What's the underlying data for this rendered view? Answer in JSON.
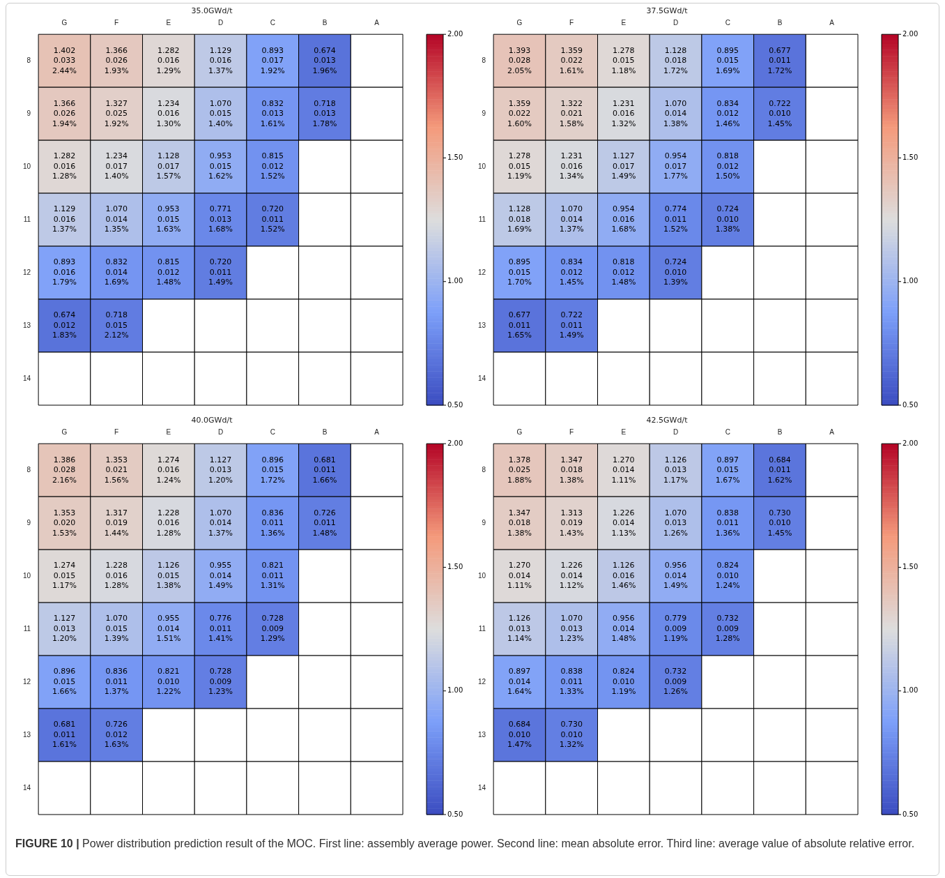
{
  "chart_data": [
    {
      "type": "heatmap",
      "title": "35.0GWd/t",
      "categories": [
        "G",
        "F",
        "E",
        "D",
        "C",
        "B",
        "A"
      ],
      "y_categories": [
        "8",
        "9",
        "10",
        "11",
        "12",
        "13",
        "14"
      ],
      "cells": [
        [
          1.402,
          1.366,
          1.282,
          1.129,
          0.893,
          0.674,
          null
        ],
        [
          1.366,
          1.327,
          1.234,
          1.07,
          0.832,
          0.718,
          null
        ],
        [
          1.282,
          1.234,
          1.128,
          0.953,
          0.815,
          null,
          null
        ],
        [
          1.129,
          1.07,
          0.953,
          0.771,
          0.72,
          null,
          null
        ],
        [
          0.893,
          0.832,
          0.815,
          0.72,
          null,
          null,
          null
        ],
        [
          0.674,
          0.718,
          null,
          null,
          null,
          null,
          null
        ],
        [
          null,
          null,
          null,
          null,
          null,
          null,
          null
        ]
      ],
      "cell_labels": [
        [
          "1.402\n0.033\n2.44%",
          "1.366\n0.026\n1.93%",
          "1.282\n0.016\n1.29%",
          "1.129\n0.016\n1.37%",
          "0.893\n0.017\n1.92%",
          "0.674\n0.013\n1.96%",
          null
        ],
        [
          "1.366\n0.026\n1.94%",
          "1.327\n0.025\n1.92%",
          "1.234\n0.016\n1.30%",
          "1.070\n0.015\n1.40%",
          "0.832\n0.013\n1.61%",
          "0.718\n0.013\n1.78%",
          null
        ],
        [
          "1.282\n0.016\n1.28%",
          "1.234\n0.017\n1.40%",
          "1.128\n0.017\n1.57%",
          "0.953\n0.015\n1.62%",
          "0.815\n0.012\n1.52%",
          null,
          null
        ],
        [
          "1.129\n0.016\n1.37%",
          "1.070\n0.014\n1.35%",
          "0.953\n0.015\n1.63%",
          "0.771\n0.013\n1.68%",
          "0.720\n0.011\n1.52%",
          null,
          null
        ],
        [
          "0.893\n0.016\n1.79%",
          "0.832\n0.014\n1.69%",
          "0.815\n0.012\n1.48%",
          "0.720\n0.011\n1.49%",
          null,
          null,
          null
        ],
        [
          "0.674\n0.012\n1.83%",
          "0.718\n0.015\n2.12%",
          null,
          null,
          null,
          null,
          null
        ],
        [
          null,
          null,
          null,
          null,
          null,
          null,
          null
        ]
      ],
      "clim": [
        0.5,
        2.0
      ],
      "cticks": [
        {
          "value": 0.5,
          "label": "0.50"
        },
        {
          "value": 1.0,
          "label": "1.00"
        },
        {
          "value": 1.5,
          "label": "1.50"
        },
        {
          "value": 2.0,
          "label": "2.00"
        }
      ]
    },
    {
      "type": "heatmap",
      "title": "37.5GWd/t",
      "categories": [
        "G",
        "F",
        "E",
        "D",
        "C",
        "B",
        "A"
      ],
      "y_categories": [
        "8",
        "9",
        "10",
        "11",
        "12",
        "13",
        "14"
      ],
      "cells": [
        [
          1.393,
          1.359,
          1.278,
          1.128,
          0.895,
          0.677,
          null
        ],
        [
          1.359,
          1.322,
          1.231,
          1.07,
          0.834,
          0.722,
          null
        ],
        [
          1.278,
          1.231,
          1.127,
          0.954,
          0.818,
          null,
          null
        ],
        [
          1.128,
          1.07,
          0.954,
          0.774,
          0.724,
          null,
          null
        ],
        [
          0.895,
          0.834,
          0.818,
          0.724,
          null,
          null,
          null
        ],
        [
          0.677,
          0.722,
          null,
          null,
          null,
          null,
          null
        ],
        [
          null,
          null,
          null,
          null,
          null,
          null,
          null
        ]
      ],
      "cell_labels": [
        [
          "1.393\n0.028\n2.05%",
          "1.359\n0.022\n1.61%",
          "1.278\n0.015\n1.18%",
          "1.128\n0.018\n1.72%",
          "0.895\n0.015\n1.69%",
          "0.677\n0.011\n1.72%",
          null
        ],
        [
          "1.359\n0.022\n1.60%",
          "1.322\n0.021\n1.58%",
          "1.231\n0.016\n1.32%",
          "1.070\n0.014\n1.38%",
          "0.834\n0.012\n1.46%",
          "0.722\n0.010\n1.45%",
          null
        ],
        [
          "1.278\n0.015\n1.19%",
          "1.231\n0.016\n1.34%",
          "1.127\n0.017\n1.49%",
          "0.954\n0.017\n1.77%",
          "0.818\n0.012\n1.50%",
          null,
          null
        ],
        [
          "1.128\n0.018\n1.69%",
          "1.070\n0.014\n1.37%",
          "0.954\n0.016\n1.68%",
          "0.774\n0.011\n1.52%",
          "0.724\n0.010\n1.38%",
          null,
          null
        ],
        [
          "0.895\n0.015\n1.70%",
          "0.834\n0.012\n1.45%",
          "0.818\n0.012\n1.48%",
          "0.724\n0.010\n1.39%",
          null,
          null,
          null
        ],
        [
          "0.677\n0.011\n1.65%",
          "0.722\n0.011\n1.49%",
          null,
          null,
          null,
          null,
          null
        ],
        [
          null,
          null,
          null,
          null,
          null,
          null,
          null
        ]
      ],
      "clim": [
        0.5,
        2.0
      ],
      "cticks": [
        {
          "value": 0.5,
          "label": "0.50"
        },
        {
          "value": 1.0,
          "label": "1.00"
        },
        {
          "value": 1.5,
          "label": "1.50"
        },
        {
          "value": 2.0,
          "label": "2.00"
        }
      ]
    },
    {
      "type": "heatmap",
      "title": "40.0GWd/t",
      "categories": [
        "G",
        "F",
        "E",
        "D",
        "C",
        "B",
        "A"
      ],
      "y_categories": [
        "8",
        "9",
        "10",
        "11",
        "12",
        "13",
        "14"
      ],
      "cells": [
        [
          1.386,
          1.353,
          1.274,
          1.127,
          0.896,
          0.681,
          null
        ],
        [
          1.353,
          1.317,
          1.228,
          1.07,
          0.836,
          0.726,
          null
        ],
        [
          1.274,
          1.228,
          1.126,
          0.955,
          0.821,
          null,
          null
        ],
        [
          1.127,
          1.07,
          0.955,
          0.776,
          0.728,
          null,
          null
        ],
        [
          0.896,
          0.836,
          0.821,
          0.728,
          null,
          null,
          null
        ],
        [
          0.681,
          0.726,
          null,
          null,
          null,
          null,
          null
        ],
        [
          null,
          null,
          null,
          null,
          null,
          null,
          null
        ]
      ],
      "cell_labels": [
        [
          "1.386\n0.028\n2.16%",
          "1.353\n0.021\n1.56%",
          "1.274\n0.016\n1.24%",
          "1.127\n0.013\n1.20%",
          "0.896\n0.015\n1.72%",
          "0.681\n0.011\n1.66%",
          null
        ],
        [
          "1.353\n0.020\n1.53%",
          "1.317\n0.019\n1.44%",
          "1.228\n0.016\n1.28%",
          "1.070\n0.014\n1.37%",
          "0.836\n0.011\n1.36%",
          "0.726\n0.011\n1.48%",
          null
        ],
        [
          "1.274\n0.015\n1.17%",
          "1.228\n0.016\n1.28%",
          "1.126\n0.015\n1.38%",
          "0.955\n0.014\n1.49%",
          "0.821\n0.011\n1.31%",
          null,
          null
        ],
        [
          "1.127\n0.013\n1.20%",
          "1.070\n0.015\n1.39%",
          "0.955\n0.014\n1.51%",
          "0.776\n0.011\n1.41%",
          "0.728\n0.009\n1.29%",
          null,
          null
        ],
        [
          "0.896\n0.015\n1.66%",
          "0.836\n0.011\n1.37%",
          "0.821\n0.010\n1.22%",
          "0.728\n0.009\n1.23%",
          null,
          null,
          null
        ],
        [
          "0.681\n0.011\n1.61%",
          "0.726\n0.012\n1.63%",
          null,
          null,
          null,
          null,
          null
        ],
        [
          null,
          null,
          null,
          null,
          null,
          null,
          null
        ]
      ],
      "clim": [
        0.5,
        2.0
      ],
      "cticks": [
        {
          "value": 0.5,
          "label": "0.50"
        },
        {
          "value": 1.0,
          "label": "1.00"
        },
        {
          "value": 1.5,
          "label": "1.50"
        },
        {
          "value": 2.0,
          "label": "2.00"
        }
      ]
    },
    {
      "type": "heatmap",
      "title": "42.5GWd/t",
      "categories": [
        "G",
        "F",
        "E",
        "D",
        "C",
        "B",
        "A"
      ],
      "y_categories": [
        "8",
        "9",
        "10",
        "11",
        "12",
        "13",
        "14"
      ],
      "cells": [
        [
          1.378,
          1.347,
          1.27,
          1.126,
          0.897,
          0.684,
          null
        ],
        [
          1.347,
          1.313,
          1.226,
          1.07,
          0.838,
          0.73,
          null
        ],
        [
          1.27,
          1.226,
          1.126,
          0.956,
          0.824,
          null,
          null
        ],
        [
          1.126,
          1.07,
          0.956,
          0.779,
          0.732,
          null,
          null
        ],
        [
          0.897,
          0.838,
          0.824,
          0.732,
          null,
          null,
          null
        ],
        [
          0.684,
          0.73,
          null,
          null,
          null,
          null,
          null
        ],
        [
          null,
          null,
          null,
          null,
          null,
          null,
          null
        ]
      ],
      "cell_labels": [
        [
          "1.378\n0.025\n1.88%",
          "1.347\n0.018\n1.38%",
          "1.270\n0.014\n1.11%",
          "1.126\n0.013\n1.17%",
          "0.897\n0.015\n1.67%",
          "0.684\n0.011\n1.62%",
          null
        ],
        [
          "1.347\n0.018\n1.38%",
          "1.313\n0.019\n1.43%",
          "1.226\n0.014\n1.13%",
          "1.070\n0.013\n1.26%",
          "0.838\n0.011\n1.36%",
          "0.730\n0.010\n1.45%",
          null
        ],
        [
          "1.270\n0.014\n1.11%",
          "1.226\n0.014\n1.12%",
          "1.126\n0.016\n1.46%",
          "0.956\n0.014\n1.49%",
          "0.824\n0.010\n1.24%",
          null,
          null
        ],
        [
          "1.126\n0.013\n1.14%",
          "1.070\n0.013\n1.23%",
          "0.956\n0.014\n1.48%",
          "0.779\n0.009\n1.19%",
          "0.732\n0.009\n1.28%",
          null,
          null
        ],
        [
          "0.897\n0.014\n1.64%",
          "0.838\n0.011\n1.33%",
          "0.824\n0.010\n1.19%",
          "0.732\n0.009\n1.26%",
          null,
          null,
          null
        ],
        [
          "0.684\n0.010\n1.47%",
          "0.730\n0.010\n1.32%",
          null,
          null,
          null,
          null,
          null
        ],
        [
          null,
          null,
          null,
          null,
          null,
          null,
          null
        ]
      ],
      "clim": [
        0.5,
        2.0
      ],
      "cticks": [
        {
          "value": 0.5,
          "label": "0.50"
        },
        {
          "value": 1.0,
          "label": "1.00"
        },
        {
          "value": 1.5,
          "label": "1.50"
        },
        {
          "value": 2.0,
          "label": "2.00"
        }
      ],
      "annotations": [
        "FIGURE 10 | Power distribution prediction result of the MOC. First line: assembly average power. Second line: mean absolute error. Third line: average value of absolute relative error."
      ]
    }
  ]
}
